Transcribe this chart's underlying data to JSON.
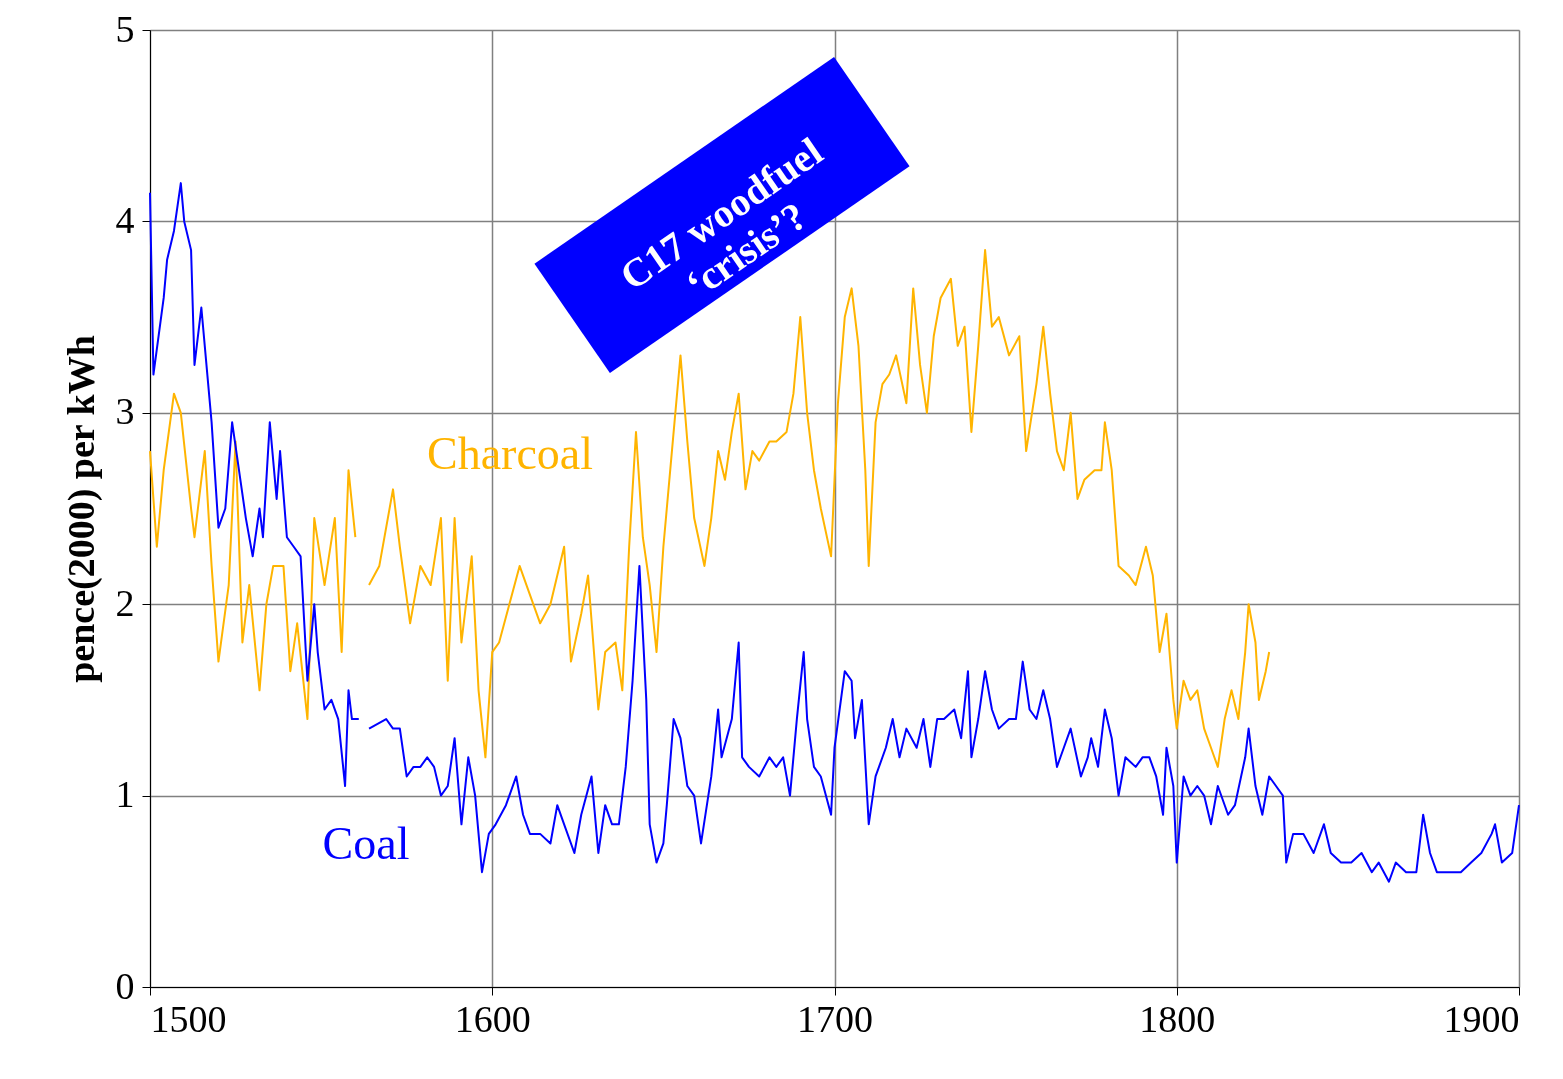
{
  "chart_data": {
    "type": "line",
    "ylabel": "pence(2000) per kWh",
    "xlim": [
      1500,
      1900
    ],
    "xticks": [
      1500,
      1600,
      1700,
      1800,
      1900
    ],
    "ylim": [
      0,
      5
    ],
    "yticks": [
      0,
      1,
      2,
      3,
      4,
      5
    ],
    "grid": true,
    "legend": false,
    "line_style": "solid",
    "marker": "none",
    "annotations": [
      "C17 woodfuel ‘crisis’?"
    ],
    "series": [
      {
        "name": "Charcoal",
        "color": "#ffb400",
        "x": [
          1500,
          1502,
          1504,
          1507,
          1509,
          1512,
          1513,
          1516,
          1518,
          1520,
          1523,
          1525,
          1527,
          1529,
          1532,
          1534,
          1536,
          1539,
          1541,
          1543,
          1546,
          1548,
          1551,
          1554,
          1556,
          1558,
          1560,
          1562,
          1564,
          1567,
          1571,
          1573,
          1576,
          1579,
          1582,
          1585,
          1587,
          1589,
          1591,
          1594,
          1596,
          1598,
          1600,
          1602,
          1605,
          1608,
          1610,
          1614,
          1617,
          1621,
          1623,
          1626,
          1628,
          1631,
          1633,
          1636,
          1638,
          1640,
          1642,
          1644,
          1646,
          1648,
          1650,
          1653,
          1655,
          1657,
          1659,
          1662,
          1664,
          1666,
          1668,
          1670,
          1672,
          1674,
          1676,
          1678,
          1681,
          1683,
          1686,
          1688,
          1690,
          1692,
          1694,
          1696,
          1699,
          1701,
          1703,
          1705,
          1707,
          1709,
          1710,
          1712,
          1714,
          1716,
          1718,
          1721,
          1723,
          1725,
          1727,
          1729,
          1731,
          1734,
          1736,
          1738,
          1740,
          1742,
          1744,
          1746,
          1748,
          1751,
          1754,
          1756,
          1759,
          1761,
          1763,
          1765,
          1767,
          1769,
          1771,
          1773,
          1776,
          1778,
          1779,
          1781,
          1783,
          1786,
          1788,
          1791,
          1793,
          1795,
          1797,
          1799,
          1800,
          1802,
          1804,
          1806,
          1808,
          1810,
          1812,
          1814,
          1816,
          1818,
          1820,
          1821,
          1823,
          1824,
          1826,
          1827
        ],
        "values": [
          2.8,
          2.3,
          2.7,
          3.1,
          3.0,
          2.5,
          2.35,
          2.8,
          2.2,
          1.7,
          2.1,
          2.85,
          1.8,
          2.1,
          1.55,
          2.0,
          2.2,
          2.2,
          1.65,
          1.9,
          1.4,
          2.45,
          2.1,
          2.45,
          1.75,
          2.7,
          2.35,
          null,
          2.1,
          2.2,
          2.6,
          2.3,
          1.9,
          2.2,
          2.1,
          2.45,
          1.6,
          2.45,
          1.8,
          2.25,
          1.55,
          1.2,
          1.75,
          1.8,
          2.0,
          2.2,
          2.1,
          1.9,
          2.0,
          2.3,
          1.7,
          1.95,
          2.15,
          1.45,
          1.75,
          1.8,
          1.55,
          2.3,
          2.9,
          2.35,
          2.1,
          1.75,
          2.3,
          2.9,
          3.3,
          2.85,
          2.45,
          2.2,
          2.45,
          2.8,
          2.65,
          2.9,
          3.1,
          2.6,
          2.8,
          2.75,
          2.85,
          2.85,
          2.9,
          3.1,
          3.5,
          3.0,
          2.7,
          2.5,
          2.25,
          3.05,
          3.5,
          3.65,
          3.35,
          2.7,
          2.2,
          2.95,
          3.15,
          3.2,
          3.3,
          3.05,
          3.65,
          3.25,
          3.0,
          3.4,
          3.6,
          3.7,
          3.35,
          3.45,
          2.9,
          3.35,
          3.85,
          3.45,
          3.5,
          3.3,
          3.4,
          2.8,
          3.15,
          3.45,
          3.1,
          2.8,
          2.7,
          3.0,
          2.55,
          2.65,
          2.7,
          2.7,
          2.95,
          2.7,
          2.2,
          2.15,
          2.1,
          2.3,
          2.15,
          1.75,
          1.95,
          1.5,
          1.35,
          1.6,
          1.5,
          1.55,
          1.35,
          1.25,
          1.15,
          1.4,
          1.55,
          1.4,
          1.75,
          2.0,
          1.8,
          1.5,
          1.65,
          1.75
        ]
      },
      {
        "name": "Coal",
        "color": "#0000ff",
        "x": [
          1500,
          1501,
          1504,
          1505,
          1507,
          1509,
          1510,
          1512,
          1513,
          1515,
          1516,
          1518,
          1520,
          1522,
          1524,
          1526,
          1528,
          1530,
          1532,
          1533,
          1535,
          1537,
          1538,
          1540,
          1542,
          1544,
          1546,
          1548,
          1549,
          1551,
          1553,
          1555,
          1557,
          1558,
          1559,
          1561,
          1562,
          1564,
          1569,
          1571,
          1573,
          1575,
          1577,
          1579,
          1581,
          1583,
          1585,
          1587,
          1589,
          1591,
          1593,
          1595,
          1597,
          1599,
          1601,
          1604,
          1607,
          1609,
          1611,
          1614,
          1617,
          1619,
          1621,
          1624,
          1626,
          1629,
          1631,
          1633,
          1635,
          1637,
          1639,
          1641,
          1643,
          1645,
          1646,
          1648,
          1650,
          1651,
          1653,
          1655,
          1657,
          1659,
          1661,
          1664,
          1666,
          1667,
          1670,
          1672,
          1673,
          1675,
          1678,
          1681,
          1683,
          1685,
          1687,
          1689,
          1691,
          1692,
          1694,
          1696,
          1699,
          1700,
          1703,
          1705,
          1706,
          1708,
          1710,
          1712,
          1715,
          1717,
          1719,
          1721,
          1724,
          1726,
          1728,
          1730,
          1732,
          1735,
          1737,
          1739,
          1740,
          1742,
          1744,
          1746,
          1748,
          1751,
          1753,
          1755,
          1757,
          1759,
          1761,
          1763,
          1765,
          1767,
          1769,
          1772,
          1774,
          1775,
          1777,
          1779,
          1781,
          1783,
          1785,
          1788,
          1790,
          1792,
          1794,
          1796,
          1797,
          1799,
          1800,
          1802,
          1804,
          1806,
          1808,
          1810,
          1812,
          1815,
          1817,
          1820,
          1821,
          1823,
          1825,
          1827,
          1829,
          1831,
          1832,
          1834,
          1837,
          1840,
          1843,
          1845,
          1848,
          1851,
          1854,
          1857,
          1859,
          1862,
          1864,
          1867,
          1870,
          1872,
          1874,
          1876,
          1880,
          1883,
          1886,
          1889,
          1892,
          1893,
          1895,
          1898,
          1900
        ],
        "values": [
          4.15,
          3.2,
          3.6,
          3.8,
          3.95,
          4.2,
          4.0,
          3.85,
          3.25,
          3.55,
          3.35,
          2.95,
          2.4,
          2.5,
          2.95,
          2.7,
          2.45,
          2.25,
          2.5,
          2.35,
          2.95,
          2.55,
          2.8,
          2.35,
          2.3,
          2.25,
          1.6,
          2.0,
          1.75,
          1.45,
          1.5,
          1.4,
          1.05,
          1.55,
          1.4,
          1.4,
          null,
          1.35,
          1.4,
          1.35,
          1.35,
          1.1,
          1.15,
          1.15,
          1.2,
          1.15,
          1.0,
          1.05,
          1.3,
          0.85,
          1.2,
          1.0,
          0.6,
          0.8,
          0.85,
          0.95,
          1.1,
          0.9,
          0.8,
          0.8,
          0.75,
          0.95,
          0.85,
          0.7,
          0.9,
          1.1,
          0.7,
          0.95,
          0.85,
          0.85,
          1.15,
          1.6,
          2.2,
          1.5,
          0.85,
          0.65,
          0.75,
          0.95,
          1.4,
          1.3,
          1.05,
          1.0,
          0.75,
          1.1,
          1.45,
          1.2,
          1.4,
          1.8,
          1.2,
          1.15,
          1.1,
          1.2,
          1.15,
          1.2,
          1.0,
          1.4,
          1.75,
          1.4,
          1.15,
          1.1,
          0.9,
          1.25,
          1.65,
          1.6,
          1.3,
          1.5,
          0.85,
          1.1,
          1.25,
          1.4,
          1.2,
          1.35,
          1.25,
          1.4,
          1.15,
          1.4,
          1.4,
          1.45,
          1.3,
          1.65,
          1.2,
          1.4,
          1.65,
          1.45,
          1.35,
          1.4,
          1.4,
          1.7,
          1.45,
          1.4,
          1.55,
          1.4,
          1.15,
          1.25,
          1.35,
          1.1,
          1.2,
          1.3,
          1.15,
          1.45,
          1.3,
          1.0,
          1.2,
          1.15,
          1.2,
          1.2,
          1.1,
          0.9,
          1.25,
          1.05,
          0.65,
          1.1,
          1.0,
          1.05,
          1.0,
          0.85,
          1.05,
          0.9,
          0.95,
          1.2,
          1.35,
          1.05,
          0.9,
          1.1,
          1.05,
          1.0,
          0.65,
          0.8,
          0.8,
          0.7,
          0.85,
          0.7,
          0.65,
          0.65,
          0.7,
          0.6,
          0.65,
          0.55,
          0.65,
          0.6,
          0.6,
          0.9,
          0.7,
          0.6,
          0.6,
          0.6,
          0.65,
          0.7,
          0.8,
          0.85,
          0.65,
          0.7,
          0.95
        ]
      }
    ]
  }
}
